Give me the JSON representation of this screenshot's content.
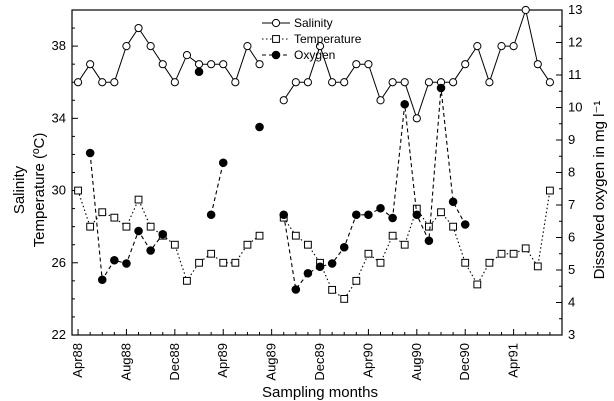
{
  "chart_data": {
    "type": "line",
    "title": "",
    "xlabel": "Sampling months",
    "ylabel_left": [
      "Salinity",
      "Temperature (ºC)"
    ],
    "ylabel_right": "Dissolved oxygen in mg l⁻¹",
    "x_ticks": [
      "Apr88",
      "Aug88",
      "Dec88",
      "Apr89",
      "Aug89",
      "Dec89",
      "Apr90",
      "Aug90",
      "Dec90",
      "Apr91"
    ],
    "x_tick_months": [
      0,
      4,
      8,
      12,
      16,
      20,
      24,
      28,
      32,
      36
    ],
    "x_range": [
      -0.5,
      40
    ],
    "ylim_left": [
      22,
      40
    ],
    "yticks_left": [
      22,
      26,
      30,
      34,
      38
    ],
    "ylim_right": [
      3,
      13
    ],
    "yticks_right": [
      3,
      4,
      5,
      6,
      7,
      8,
      9,
      10,
      11,
      12,
      13
    ],
    "legend_position": "top-center",
    "series": [
      {
        "name": "Salinity",
        "axis": "left",
        "marker": "open-circle",
        "line": "solid",
        "segments": [
          [
            [
              0,
              36
            ],
            [
              1,
              37
            ],
            [
              2,
              36
            ],
            [
              3,
              36
            ],
            [
              4,
              38
            ],
            [
              5,
              39
            ],
            [
              6,
              38
            ],
            [
              7,
              37
            ],
            [
              8,
              36
            ],
            [
              9,
              37.5
            ],
            [
              10,
              37
            ],
            [
              11,
              37
            ],
            [
              12,
              37
            ],
            [
              13,
              36
            ],
            [
              14,
              38
            ],
            [
              15,
              37
            ]
          ],
          [
            [
              17,
              35
            ],
            [
              18,
              36
            ],
            [
              19,
              36
            ],
            [
              20,
              38
            ],
            [
              21,
              36
            ],
            [
              22,
              36
            ],
            [
              23,
              37
            ],
            [
              24,
              37
            ],
            [
              25,
              35
            ],
            [
              26,
              36
            ],
            [
              27,
              36
            ],
            [
              28,
              34
            ],
            [
              29,
              36
            ],
            [
              30,
              36
            ],
            [
              31,
              36
            ],
            [
              32,
              37
            ],
            [
              33,
              38
            ],
            [
              34,
              36
            ],
            [
              35,
              38
            ],
            [
              36,
              38
            ],
            [
              37,
              40
            ],
            [
              38,
              37
            ],
            [
              39,
              36
            ]
          ]
        ]
      },
      {
        "name": "Temperature",
        "axis": "left",
        "marker": "open-square",
        "line": "dotted",
        "segments": [
          [
            [
              0,
              30
            ],
            [
              1,
              28
            ],
            [
              2,
              28.8
            ],
            [
              3,
              28.5
            ],
            [
              4,
              28
            ],
            [
              5,
              29.5
            ],
            [
              6,
              28
            ],
            [
              7,
              27.5
            ],
            [
              8,
              27
            ],
            [
              9,
              25
            ],
            [
              10,
              26
            ],
            [
              11,
              26.5
            ],
            [
              12,
              26
            ],
            [
              13,
              26
            ],
            [
              14,
              27
            ],
            [
              15,
              27.5
            ]
          ],
          [
            [
              17,
              28.5
            ],
            [
              18,
              27.5
            ],
            [
              19,
              27
            ],
            [
              20,
              26
            ],
            [
              21,
              24.5
            ],
            [
              22,
              24
            ],
            [
              23,
              25
            ],
            [
              24,
              26.5
            ],
            [
              25,
              26
            ],
            [
              26,
              27.5
            ],
            [
              27,
              27
            ],
            [
              28,
              29
            ],
            [
              29,
              28
            ],
            [
              30,
              28.8
            ],
            [
              31,
              28
            ],
            [
              32,
              26
            ],
            [
              33,
              24.8
            ],
            [
              34,
              26
            ],
            [
              35,
              26.5
            ],
            [
              36,
              26.5
            ],
            [
              37,
              26.8
            ],
            [
              38,
              25.8
            ],
            [
              39,
              30
            ]
          ]
        ]
      },
      {
        "name": "Oxygen",
        "axis": "right",
        "marker": "filled-circle",
        "line": "dashed",
        "segments": [
          [
            [
              1,
              8.6
            ],
            [
              2,
              4.7
            ],
            [
              3,
              5.3
            ],
            [
              4,
              5.2
            ],
            [
              5,
              6.2
            ],
            [
              6,
              5.6
            ],
            [
              7,
              6.1
            ]
          ],
          [
            [
              11,
              6.7
            ],
            [
              12,
              8.3
            ]
          ],
          [
            [
              10,
              11.1
            ]
          ],
          [
            [
              15,
              9.4
            ]
          ],
          [
            [
              17,
              6.7
            ],
            [
              18,
              4.4
            ],
            [
              19,
              4.9
            ],
            [
              20,
              5.1
            ],
            [
              21,
              5.2
            ],
            [
              22,
              5.7
            ],
            [
              23,
              6.7
            ],
            [
              24,
              6.7
            ],
            [
              25,
              6.9
            ],
            [
              26,
              6.6
            ],
            [
              27,
              10.1
            ],
            [
              28,
              6.7
            ],
            [
              29,
              5.9
            ],
            [
              30,
              10.6
            ],
            [
              31,
              7.1
            ],
            [
              32,
              6.4
            ]
          ]
        ]
      }
    ]
  }
}
